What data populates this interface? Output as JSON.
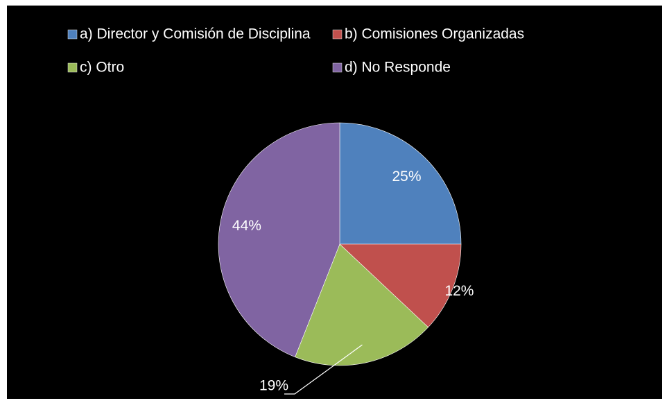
{
  "chart_data": {
    "type": "pie",
    "categories": [
      "a) Director y Comisión de Disciplina",
      "b) Comisiones Organizadas",
      "c) Otro",
      "d) No Responde"
    ],
    "values": [
      25,
      12,
      19,
      44
    ],
    "value_labels": [
      "25%",
      "12%",
      "19%",
      "44%"
    ],
    "colors": [
      "#4f81bd",
      "#c0504d",
      "#9bbb59",
      "#8064a2"
    ],
    "legend": "top"
  }
}
